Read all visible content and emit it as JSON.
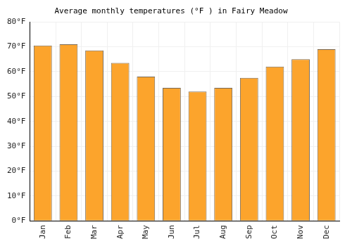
{
  "chart_data": {
    "type": "bar",
    "title": "Average monthly temperatures (°F ) in Fairy Meadow",
    "categories": [
      "Jan",
      "Feb",
      "Mar",
      "Apr",
      "May",
      "Jun",
      "Jul",
      "Aug",
      "Sep",
      "Oct",
      "Nov",
      "Dec"
    ],
    "values": [
      70.5,
      71,
      68.5,
      63.5,
      58,
      53.5,
      52,
      53.5,
      57.5,
      62,
      65,
      69
    ],
    "color": "#fca42c",
    "ylim": [
      0,
      80
    ],
    "yticks": [
      {
        "value": 0,
        "label": "0°F"
      },
      {
        "value": 10,
        "label": "10°F"
      },
      {
        "value": 20,
        "label": "20°F"
      },
      {
        "value": 30,
        "label": "30°F"
      },
      {
        "value": 40,
        "label": "40°F"
      },
      {
        "value": 50,
        "label": "50°F"
      },
      {
        "value": 60,
        "label": "60°F"
      },
      {
        "value": 70,
        "label": "70°F"
      },
      {
        "value": 80,
        "label": "80°F"
      }
    ],
    "grid": true
  }
}
